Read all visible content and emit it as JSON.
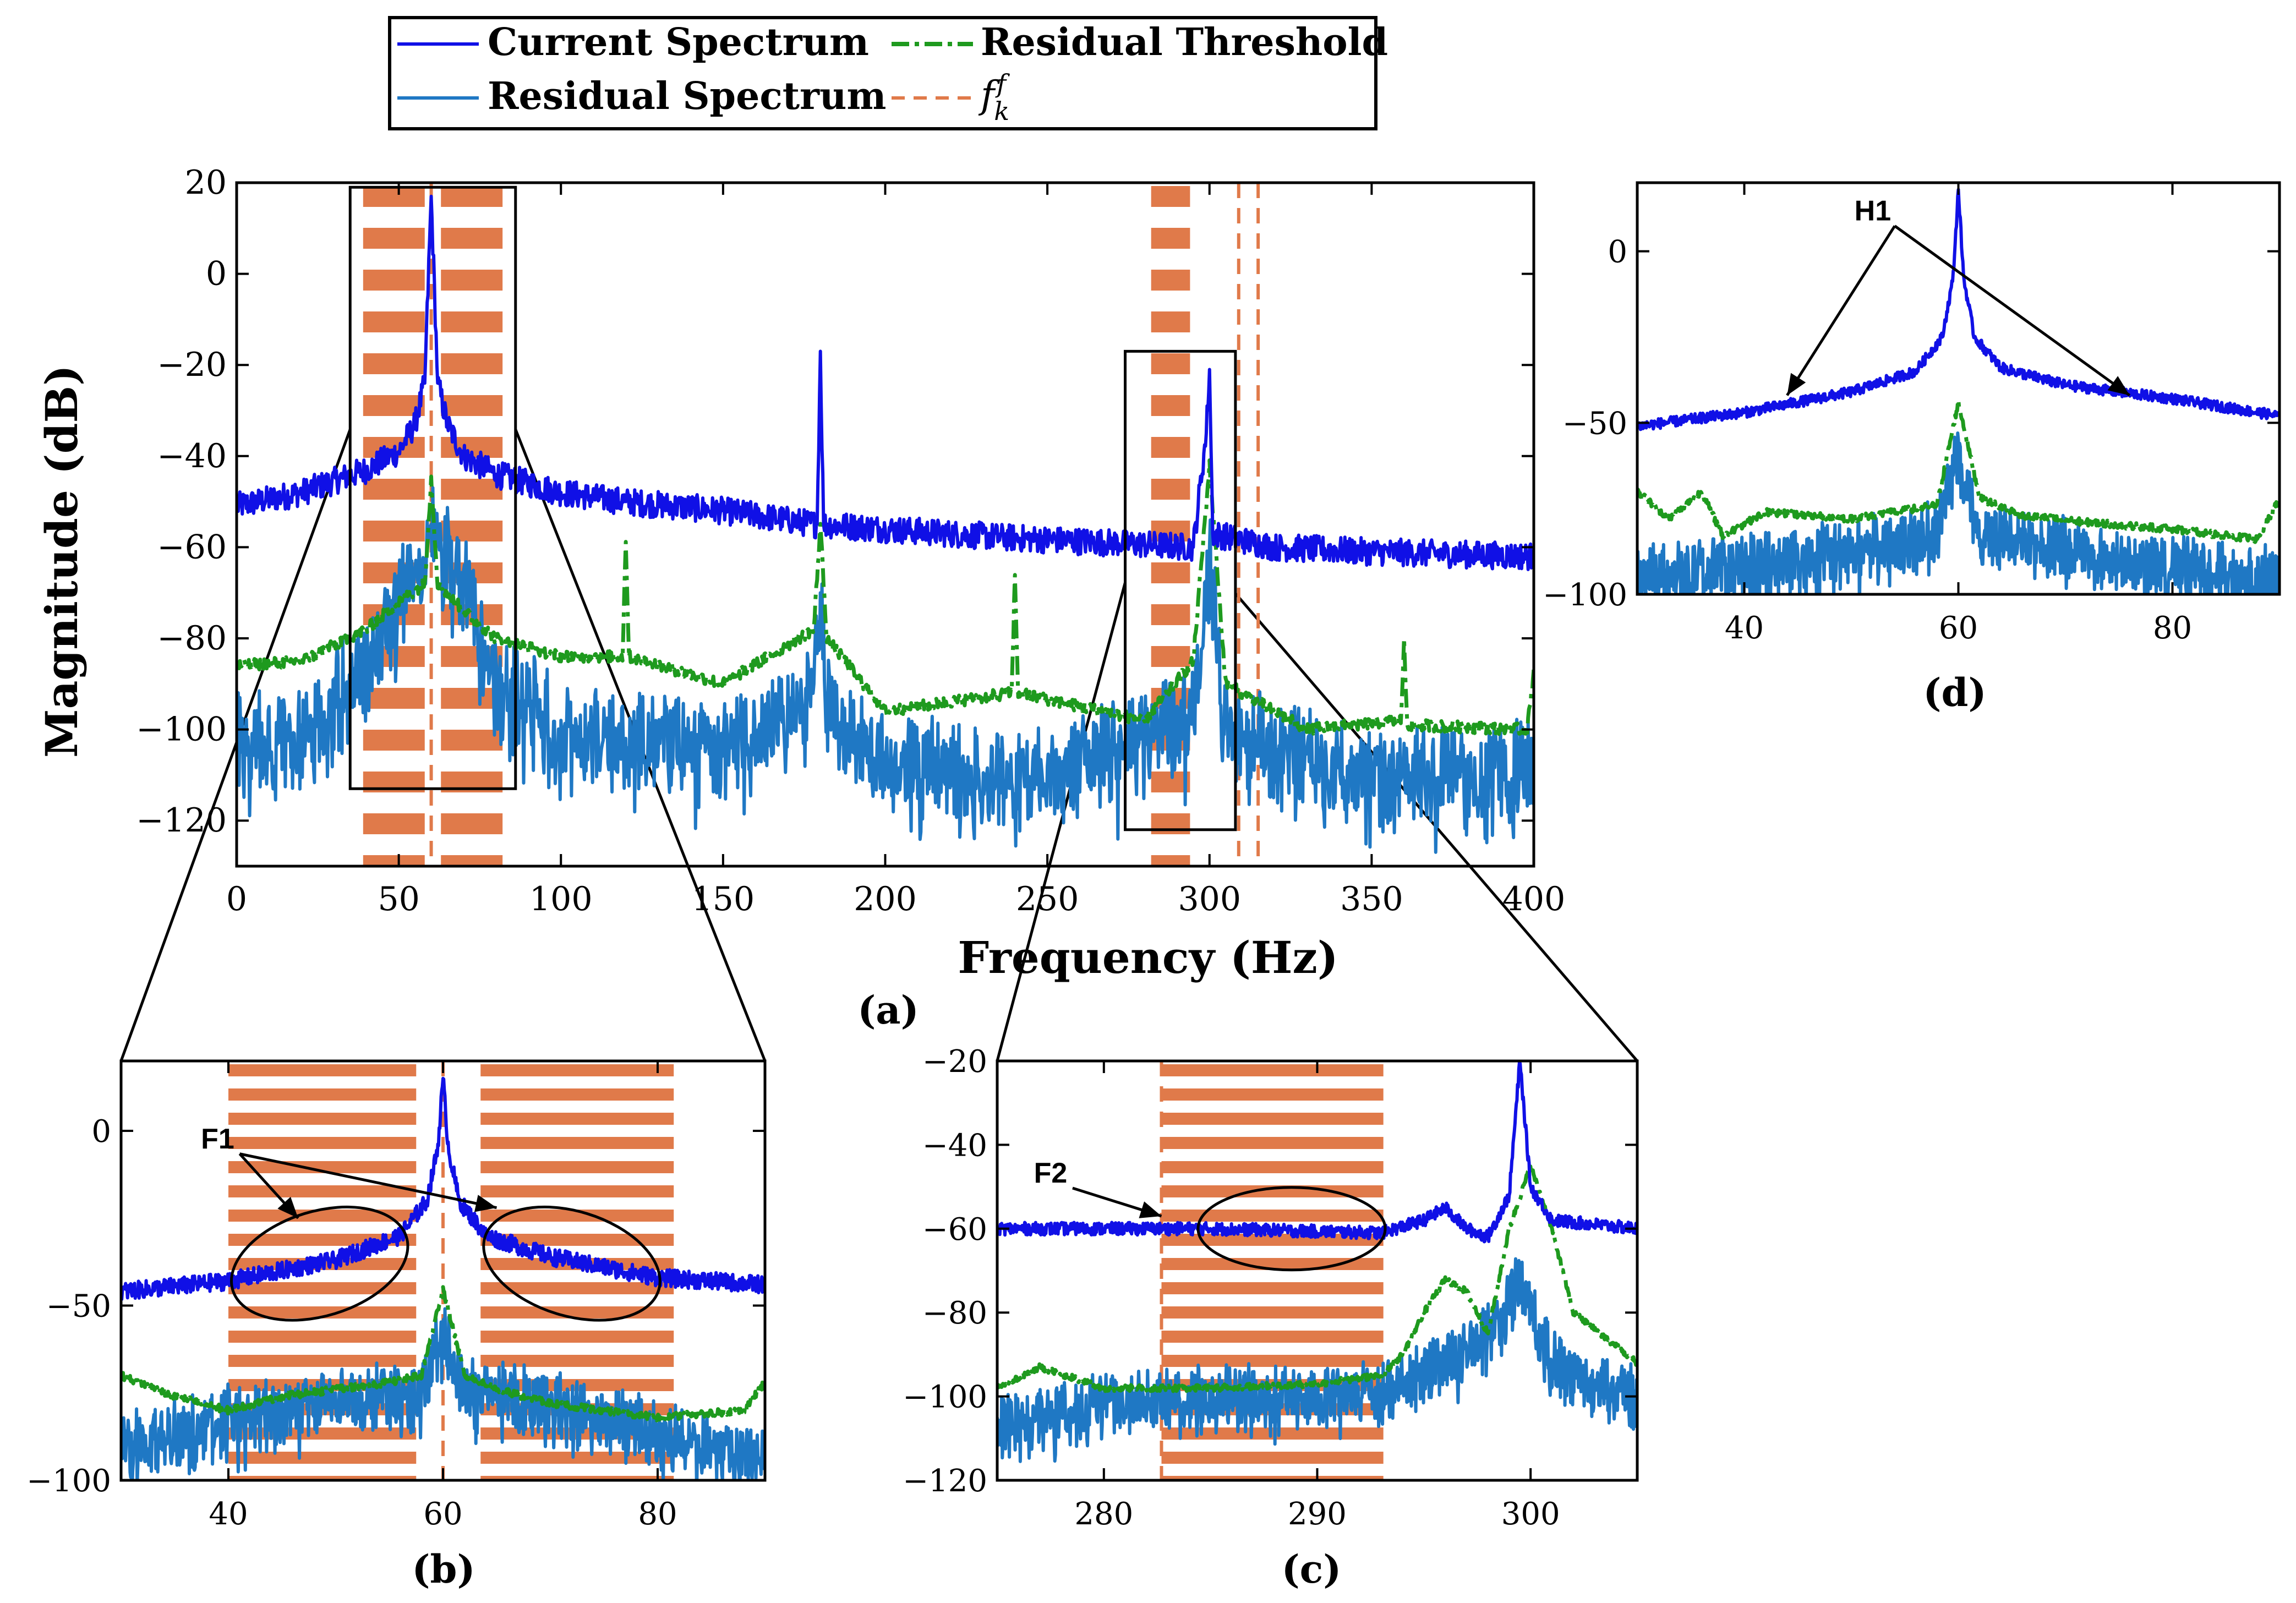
{
  "colors": {
    "current": "#1010e6",
    "residual": "#1f78c4",
    "threshold": "#1e9a1e",
    "fk": "#e07a4a",
    "band": "#e07a4a",
    "axis": "#000000"
  },
  "legend": {
    "current": "Current Spectrum",
    "residual": "Residual Spectrum",
    "threshold": "Residual Threshold",
    "fk_base": "f",
    "fk_sup": "f",
    "fk_sub": "k"
  },
  "chart_data": [
    {
      "id": "a",
      "type": "line",
      "caption": "(a)",
      "xlabel": "Frequency (Hz)",
      "ylabel": "Magnitude (dB)",
      "xlim": [
        0,
        400
      ],
      "ylim": [
        -130,
        20
      ],
      "xticks": [
        0,
        50,
        100,
        150,
        200,
        250,
        300,
        350,
        400
      ],
      "yticks": [
        20,
        0,
        -20,
        -40,
        -60,
        -80,
        -100,
        -120
      ],
      "bands": [
        [
          39,
          58
        ],
        [
          63,
          82
        ],
        [
          282,
          294
        ]
      ],
      "fk_lines": [
        60,
        309,
        315
      ],
      "zoom_boxes": [
        [
          35,
          86,
          -113,
          19
        ],
        [
          274,
          308,
          -122,
          -17
        ]
      ],
      "series": [
        {
          "name": "Current Spectrum",
          "x": [
            0,
            20,
            40,
            50,
            55,
            58,
            60,
            62,
            65,
            70,
            80,
            100,
            120,
            150,
            179,
            180,
            181,
            200,
            240,
            270,
            295,
            299,
            300,
            301,
            320,
            350,
            400
          ],
          "y": [
            -51,
            -48,
            -43,
            -39,
            -33,
            -24,
            17,
            -24,
            -33,
            -40,
            -44,
            -48,
            -50,
            -52,
            -55,
            -17,
            -55,
            -56,
            -58,
            -59,
            -60,
            -35,
            -21,
            -57,
            -60,
            -61,
            -62
          ]
        },
        {
          "name": "Residual Spectrum",
          "x": [
            0,
            20,
            40,
            50,
            60,
            70,
            80,
            100,
            150,
            178,
            180,
            182,
            200,
            250,
            295,
            300,
            305,
            350,
            400
          ],
          "y": [
            -100,
            -99,
            -83,
            -70,
            -55,
            -65,
            -85,
            -98,
            -102,
            -90,
            -70,
            -92,
            -105,
            -108,
            -95,
            -60,
            -98,
            -108,
            -106
          ]
        },
        {
          "name": "Residual Threshold",
          "x": [
            0,
            20,
            40,
            50,
            58,
            60,
            62,
            70,
            80,
            100,
            119,
            120,
            121,
            150,
            178,
            180,
            182,
            200,
            239,
            240,
            241,
            280,
            295,
            300,
            305,
            330,
            359,
            360,
            361,
            398,
            400
          ],
          "y": [
            -86,
            -85,
            -78,
            -72,
            -68,
            -45,
            -68,
            -74,
            -80,
            -84,
            -84,
            -58,
            -84,
            -90,
            -78,
            -55,
            -80,
            -96,
            -92,
            -66,
            -92,
            -98,
            -85,
            -42,
            -90,
            -100,
            -98,
            -81,
            -99,
            -100,
            -87
          ]
        }
      ]
    },
    {
      "id": "b",
      "type": "line",
      "caption": "(b)",
      "xlim": [
        30,
        90
      ],
      "ylim": [
        -100,
        20
      ],
      "xticks": [
        40,
        60,
        80
      ],
      "yticks": [
        0,
        -50,
        -100
      ],
      "bands": [
        [
          40,
          57.5
        ],
        [
          63.5,
          81.5
        ]
      ],
      "fk_lines": [
        60
      ],
      "annotation": {
        "label": "F1",
        "x": 39,
        "y": -5
      },
      "ellipses": [
        {
          "cx": 48.5,
          "cy": -38
        },
        {
          "cx": 72,
          "cy": -38
        }
      ],
      "series": [
        {
          "name": "Current Spectrum",
          "x": [
            30,
            40,
            50,
            56,
            58.5,
            59.5,
            60,
            60.5,
            61.5,
            64,
            70,
            80,
            90
          ],
          "y": [
            -46,
            -43,
            -37,
            -30,
            -20,
            -5,
            15,
            -5,
            -20,
            -30,
            -36,
            -42,
            -44
          ]
        },
        {
          "name": "Residual Spectrum",
          "x": [
            30,
            40,
            50,
            58,
            60,
            62,
            70,
            80,
            90
          ],
          "y": [
            -88,
            -80,
            -75,
            -72,
            -55,
            -72,
            -76,
            -84,
            -92
          ]
        },
        {
          "name": "Residual Threshold",
          "x": [
            30,
            35,
            40,
            45,
            50,
            55,
            58,
            60,
            62,
            65,
            70,
            80,
            88,
            90
          ],
          "y": [
            -70,
            -76,
            -80,
            -76,
            -74,
            -72,
            -70,
            -45,
            -70,
            -74,
            -78,
            -82,
            -80,
            -72
          ]
        }
      ]
    },
    {
      "id": "c",
      "type": "line",
      "caption": "(c)",
      "xlim": [
        275,
        305
      ],
      "ylim": [
        -120,
        -20
      ],
      "xticks": [
        280,
        290,
        300
      ],
      "yticks": [
        -20,
        -40,
        -60,
        -80,
        -100,
        -120
      ],
      "bands": [
        [
          282.7,
          293.1
        ]
      ],
      "fk_lines": [
        282.7
      ],
      "annotation": {
        "label": "F2",
        "x": 277.5,
        "y": -49
      },
      "ellipses": [
        {
          "cx": 288.8,
          "cy": -60
        }
      ],
      "series": [
        {
          "name": "Current Spectrum",
          "x": [
            275,
            285,
            293,
            295,
            296,
            297,
            298,
            299,
            299.5,
            300,
            301,
            305
          ],
          "y": [
            -60,
            -60,
            -61,
            -58,
            -55,
            -60,
            -62,
            -52,
            -20,
            -50,
            -58,
            -60
          ]
        },
        {
          "name": "Residual Spectrum",
          "x": [
            275,
            280,
            285,
            290,
            293,
            295,
            297,
            298.5,
            299.5,
            300.5,
            302,
            305
          ],
          "y": [
            -105,
            -100,
            -98,
            -98,
            -97,
            -92,
            -88,
            -80,
            -70,
            -85,
            -95,
            -97
          ]
        },
        {
          "name": "Residual Threshold",
          "x": [
            275,
            277,
            280,
            285,
            290,
            293,
            294,
            295,
            296,
            297,
            298,
            299,
            300,
            301,
            302,
            305
          ],
          "y": [
            -98,
            -93,
            -98,
            -98,
            -97,
            -95,
            -90,
            -80,
            -72,
            -75,
            -85,
            -60,
            -45,
            -60,
            -80,
            -92
          ]
        }
      ]
    },
    {
      "id": "d",
      "type": "line",
      "caption": "(d)",
      "xlim": [
        30,
        90
      ],
      "ylim": [
        -100,
        20
      ],
      "xticks": [
        40,
        60,
        80
      ],
      "yticks": [
        0,
        -50,
        -100
      ],
      "bands": [],
      "fk_lines": [],
      "annotation": {
        "label": "H1",
        "x": 52,
        "y": 9
      },
      "series": [
        {
          "name": "Current Spectrum",
          "x": [
            30,
            40,
            50,
            56,
            58.5,
            59.5,
            60,
            60.5,
            61.5,
            64,
            70,
            80,
            90
          ],
          "y": [
            -51,
            -47,
            -41,
            -35,
            -25,
            -8,
            18,
            -8,
            -25,
            -34,
            -39,
            -43,
            -48
          ]
        },
        {
          "name": "Residual Spectrum",
          "x": [
            30,
            40,
            50,
            58,
            60,
            62,
            70,
            80,
            90
          ],
          "y": [
            -92,
            -90,
            -85,
            -80,
            -55,
            -80,
            -85,
            -90,
            -92
          ]
        },
        {
          "name": "Residual Threshold",
          "x": [
            30,
            33,
            36,
            38,
            42,
            50,
            58,
            60,
            62,
            66,
            72,
            80,
            88,
            90
          ],
          "y": [
            -70,
            -78,
            -70,
            -83,
            -76,
            -78,
            -74,
            -44,
            -72,
            -77,
            -79,
            -81,
            -84,
            -72
          ]
        }
      ]
    }
  ]
}
